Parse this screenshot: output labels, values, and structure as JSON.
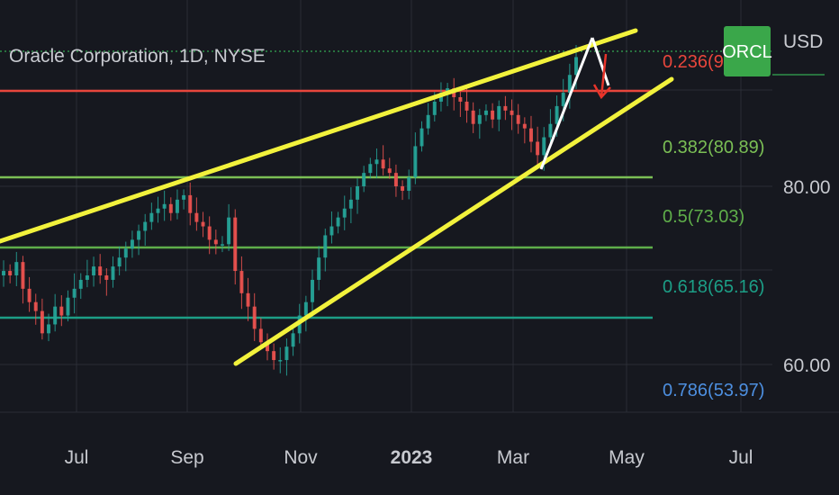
{
  "header": {
    "symbol_title": "Oracle Corporation, 1D, NYSE",
    "currency": "USD",
    "badge": "ORCL",
    "badge_color": "#3aa74a"
  },
  "chart_data": {
    "type": "candlestick",
    "title": "Oracle Corporation, 1D, NYSE",
    "x_ticks": [
      "Jul",
      "Sep",
      "Nov",
      "2023",
      "Mar",
      "May",
      "Jul"
    ],
    "y_ticks": [
      {
        "label": "80.00",
        "value": 80
      },
      {
        "label": "60.00",
        "value": 60
      }
    ],
    "y_range": [
      52,
      97
    ],
    "fib_levels": [
      {
        "ratio_label": "0.236(90.",
        "value": 90.0,
        "color": "#e8463c"
      },
      {
        "ratio_label": "0.382(80.89)",
        "value": 80.89,
        "color": "#7bbf55"
      },
      {
        "ratio_label": "0.5(73.03)",
        "value": 73.03,
        "color": "#5fae4a"
      },
      {
        "ratio_label": "0.618(65.16)",
        "value": 65.16,
        "color": "#1c9e86"
      },
      {
        "ratio_label": "0.786(53.97)",
        "value": 53.97,
        "color": "#4d8fe0"
      }
    ],
    "last_price_line_color": "#2f8f4a",
    "drawings": {
      "wedge_color": "#f2f23c",
      "impulse_color": "#ffffff",
      "arrow_color": "#e8342a"
    },
    "candle_colors": {
      "up": "#26a69a",
      "down": "#ef5350"
    },
    "candle_closes": [
      70.5,
      70.0,
      71.5,
      68.5,
      67.0,
      66.0,
      63.5,
      64.5,
      66.5,
      65.5,
      67.5,
      68.5,
      69.5,
      70.0,
      71.0,
      70.0,
      69.5,
      71.0,
      72.0,
      73.0,
      74.0,
      75.0,
      76.0,
      77.0,
      77.5,
      78.0,
      77.0,
      78.5,
      79.0,
      77.0,
      76.0,
      75.5,
      74.0,
      73.5,
      73.5,
      76.5,
      70.5,
      68.0,
      66.5,
      64.0,
      62.5,
      61.5,
      60.5,
      60.5,
      62.0,
      63.5,
      65.5,
      67.0,
      69.5,
      72.0,
      74.5,
      75.5,
      76.5,
      77.5,
      78.5,
      80.0,
      81.5,
      82.5,
      83.0,
      82.0,
      81.5,
      80.0,
      79.5,
      81.0,
      84.5,
      86.5,
      88.0,
      89.5,
      90.5,
      91.0,
      90.0,
      89.5,
      88.5,
      87.0,
      88.0,
      88.5,
      87.5,
      89.0,
      88.5,
      88.0,
      87.0,
      86.5,
      85.0,
      83.5,
      85.5,
      87.0,
      89.0,
      90.5,
      92.5,
      94.5
    ]
  }
}
